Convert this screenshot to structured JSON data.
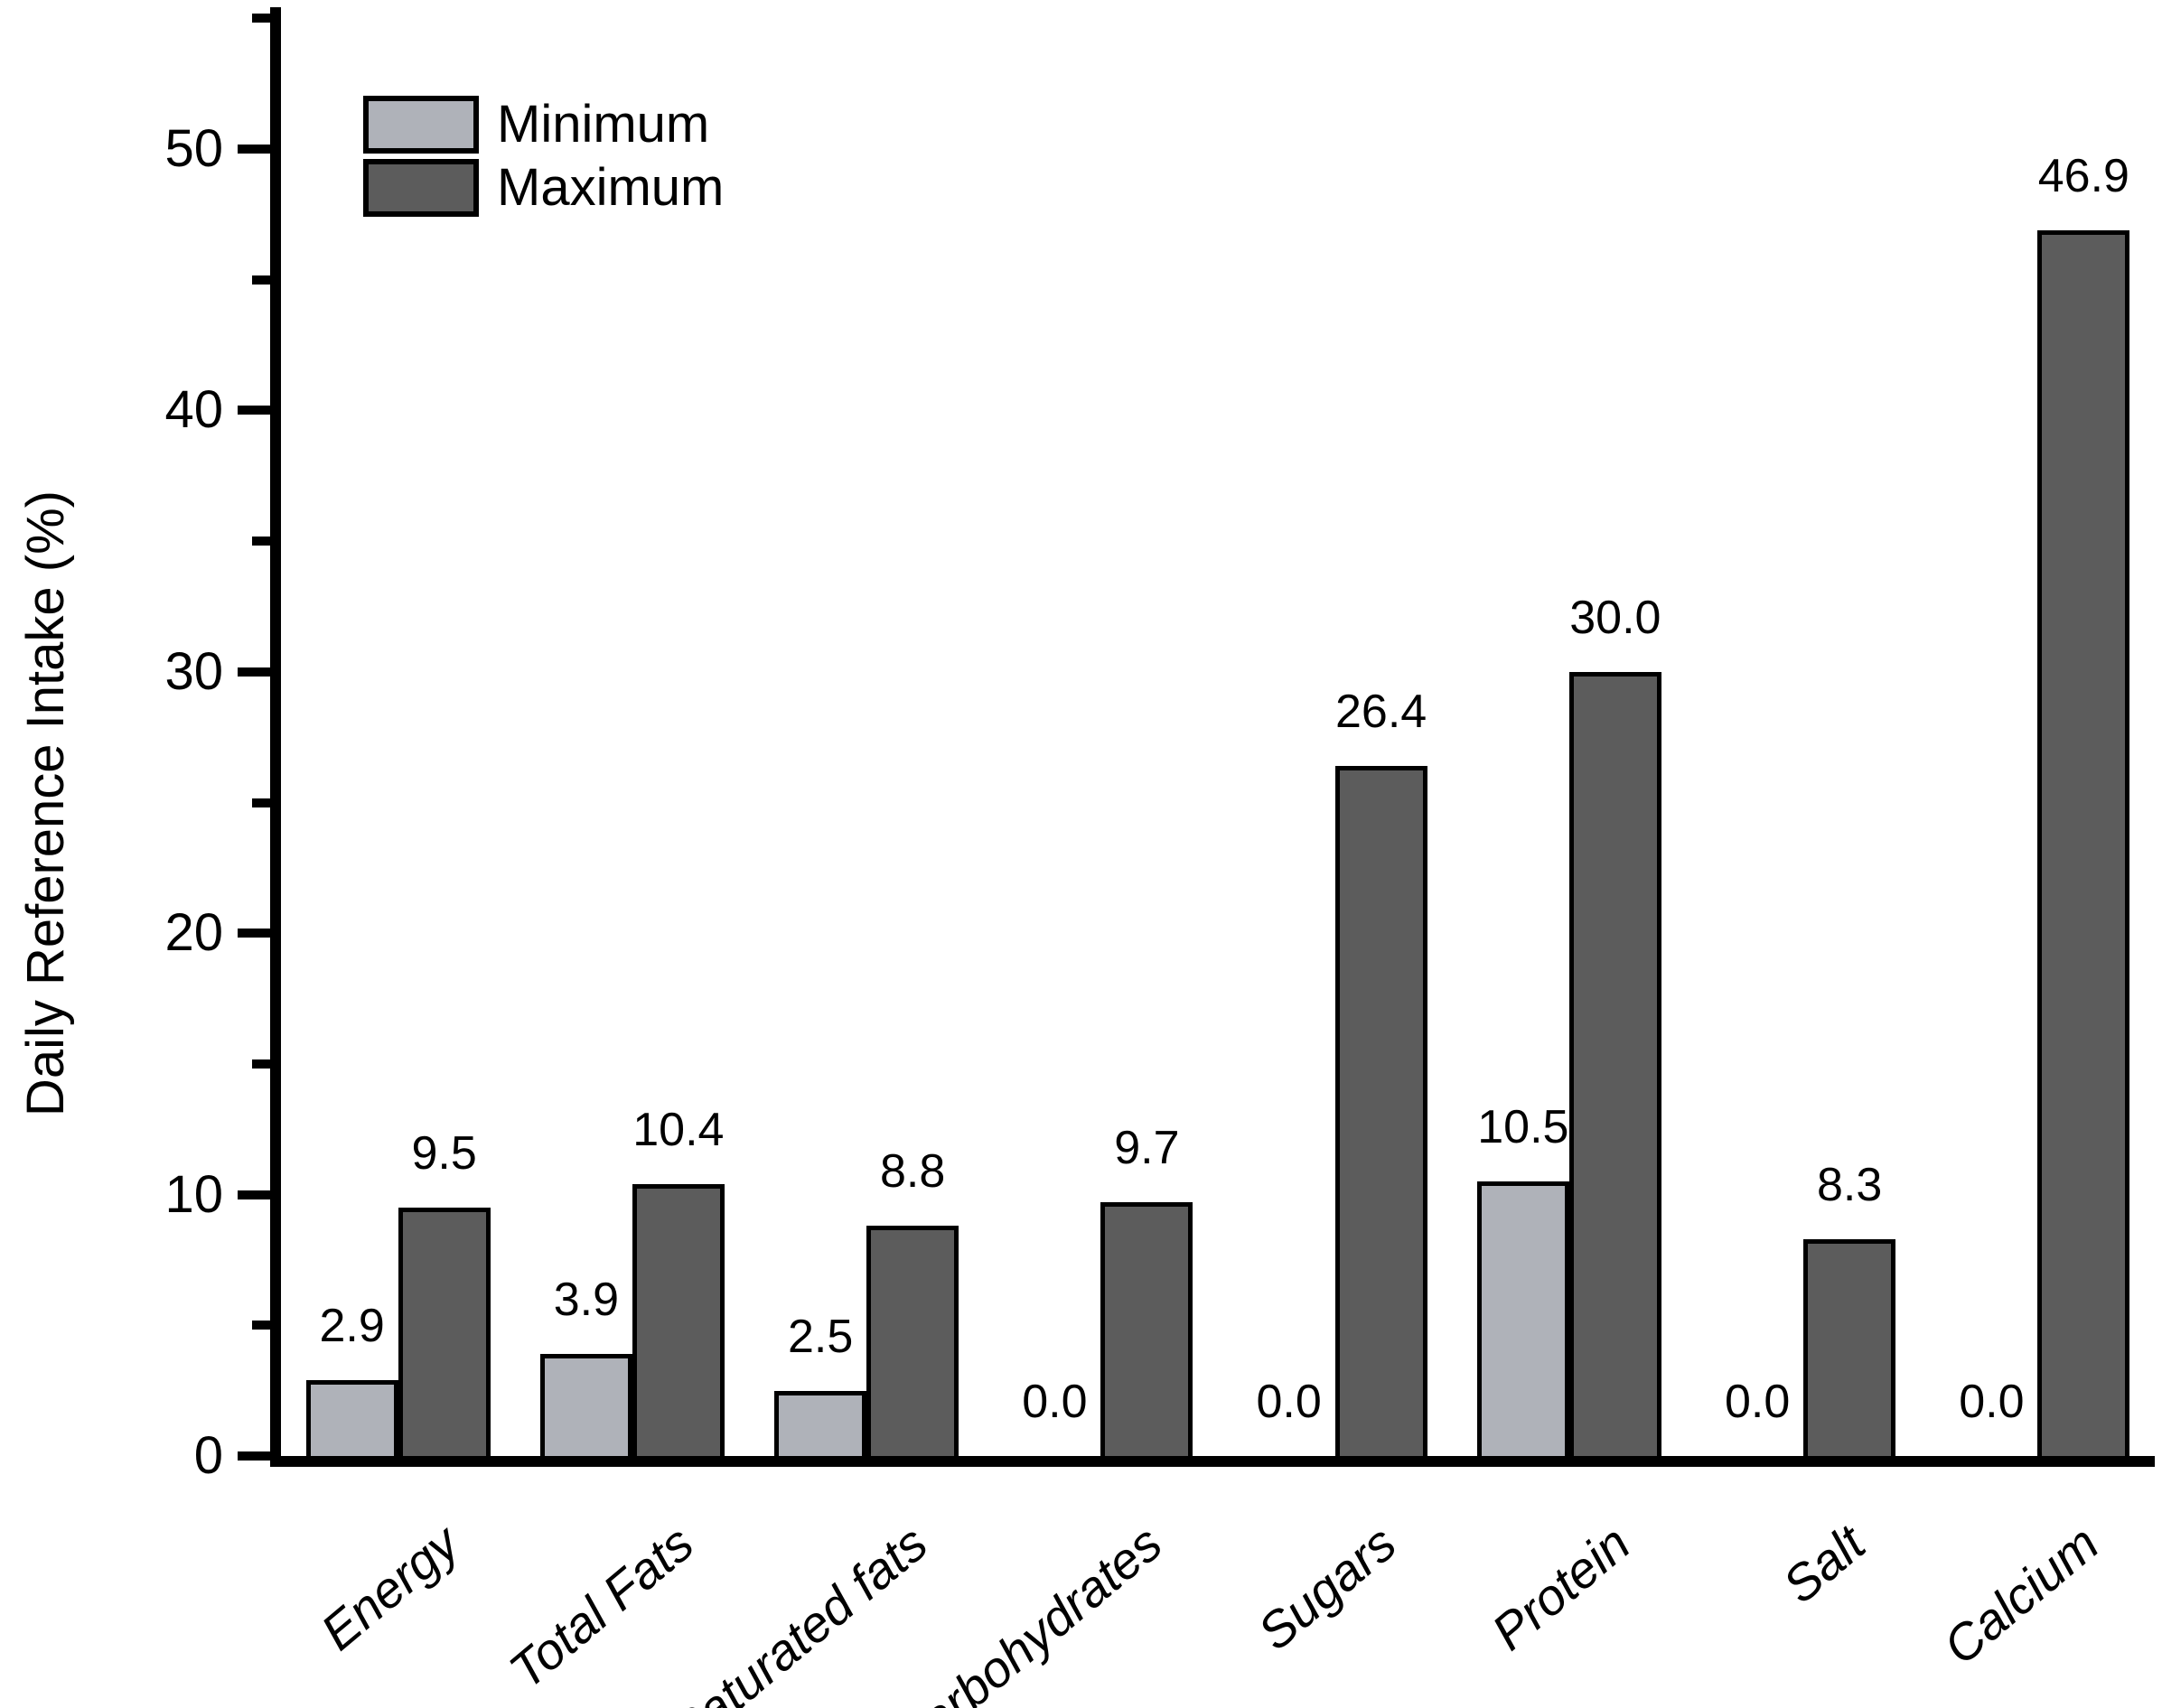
{
  "chart_data": {
    "type": "bar",
    "title": "",
    "xlabel": "",
    "ylabel": "Daily Reference Intake (%)",
    "categories": [
      "Energy",
      "Total Fats",
      "Saturated fats",
      "Carbohydrates",
      "Sugars",
      "Protein",
      "Salt",
      "Calcium"
    ],
    "series": [
      {
        "name": "Minimum",
        "color": "#AFB2B9",
        "values": [
          2.9,
          3.9,
          2.5,
          0.0,
          0.0,
          10.5,
          0.0,
          0.0
        ]
      },
      {
        "name": "Maximum",
        "color": "#5C5C5C",
        "values": [
          9.5,
          10.4,
          8.8,
          9.7,
          26.4,
          30.0,
          8.3,
          46.9
        ]
      }
    ],
    "value_labels": [
      [
        "2.9",
        "3.9",
        "2.5",
        "0.0",
        "0.0",
        "10.5",
        "0.0",
        "0.0"
      ],
      [
        "9.5",
        "10.4",
        "8.8",
        "9.7",
        "26.4",
        "30.0",
        "8.3",
        "46.9"
      ]
    ],
    "ylim": [
      0,
      55
    ],
    "y_major_ticks": [
      0,
      10,
      20,
      30,
      40,
      50
    ],
    "y_minor_ticks": [
      5,
      15,
      25,
      35,
      45,
      55
    ],
    "grid": false,
    "legend_position": "top-left",
    "bar_edge_color": "#000000",
    "axis_color": "#000000"
  }
}
